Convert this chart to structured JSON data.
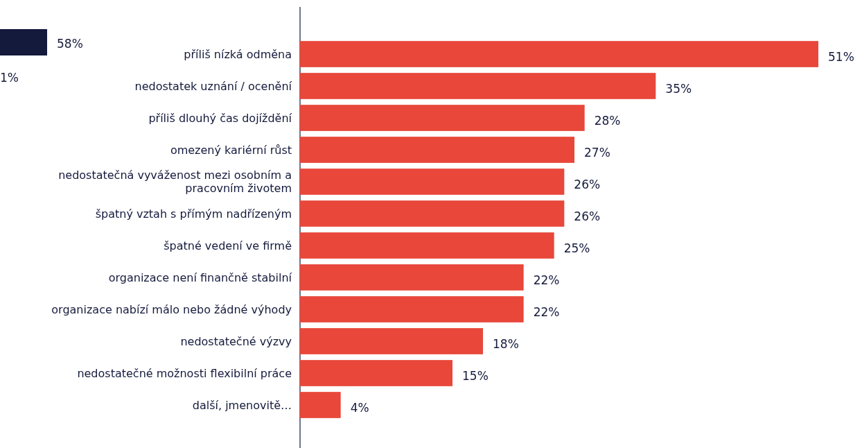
{
  "chart_data": [
    {
      "type": "other",
      "color": "#141a3c",
      "annotations": [
        "58%",
        "1%"
      ]
    },
    {
      "type": "bar",
      "orientation": "horizontal",
      "categories": [
        "příliš nízká odměna",
        "nedostatek uznání / ocenění",
        "příliš dlouhý čas dojíždění",
        "omezený kariérní růst",
        "nedostatečná vyváženost mezi osobním a pracovním životem",
        "špatný vztah s přímým nadřízeným",
        "špatné vedení ve firmě",
        "organizace není finančně stabilní",
        "organizace nabízí málo nebo žádné výhody",
        "nedostatečné výzvy",
        "nedostatečné možnosti flexibilní práce",
        "další, jmenovitě…"
      ],
      "values": [
        51,
        35,
        28,
        27,
        26,
        26,
        25,
        22,
        22,
        18,
        15,
        4
      ],
      "color": "#e8473a",
      "value_labels": [
        "51%",
        "35%",
        "28%",
        "27%",
        "26%",
        "26%",
        "25%",
        "22%",
        "22%",
        "18%",
        "15%",
        "4%"
      ]
    }
  ]
}
